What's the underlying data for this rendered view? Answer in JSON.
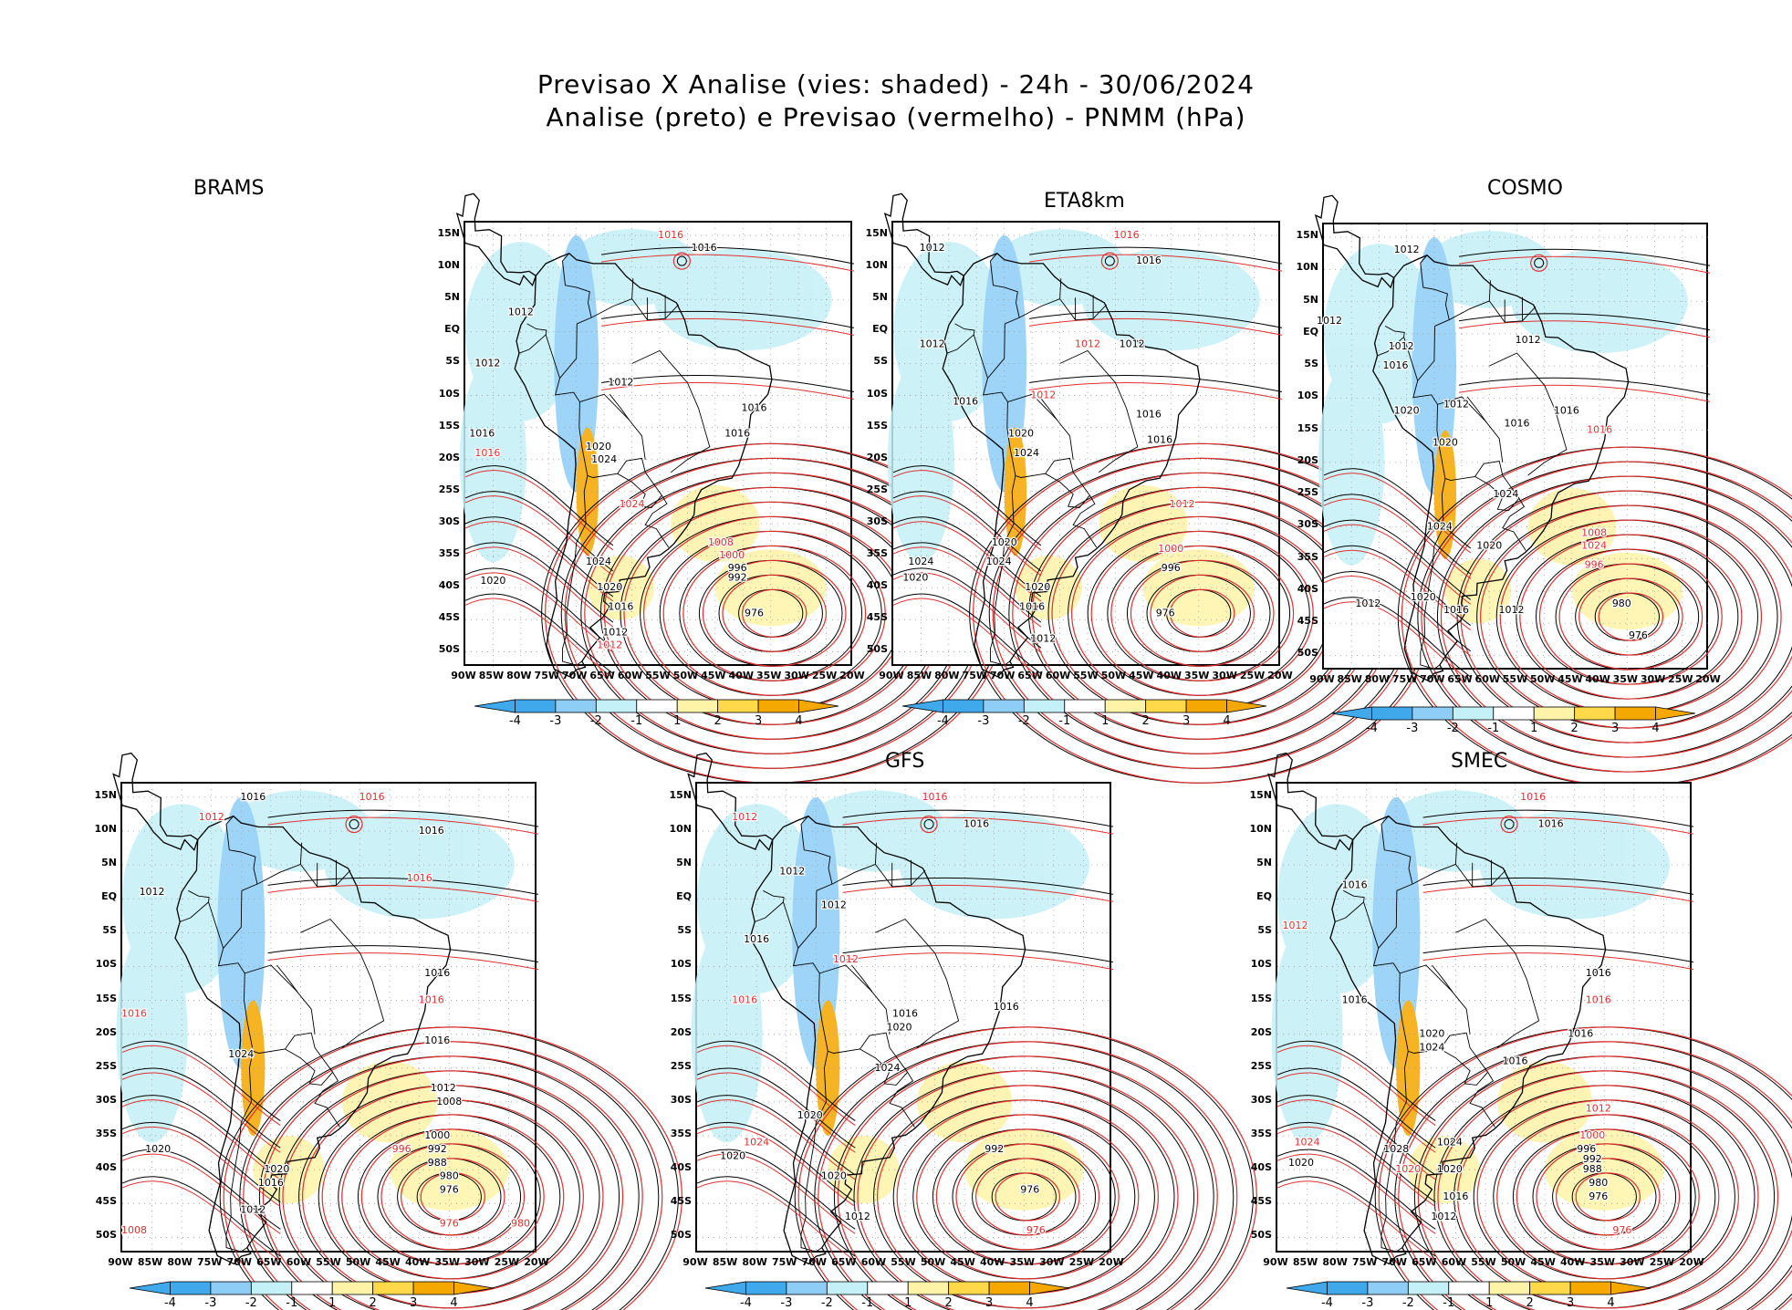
{
  "title": {
    "line1": "Previsao X Analise (vies: shaded) - 24h - 30/06/2024",
    "line2": "Analise (preto) e Previsao (vermelho) - PNMM (hPa)"
  },
  "colors": {
    "analysis_contour": "#000000",
    "forecast_contour": "#e03030",
    "bias": [
      "#3fa9ec",
      "#8ecdf6",
      "#c4f0f7",
      "#ffffff",
      "#fff3a8",
      "#ffd94a",
      "#f5a800"
    ]
  },
  "axes": {
    "lat_labels": [
      "15N",
      "10N",
      "5N",
      "EQ",
      "5S",
      "10S",
      "15S",
      "20S",
      "25S",
      "30S",
      "35S",
      "40S",
      "45S",
      "50S"
    ],
    "lon_labels": [
      "90W",
      "85W",
      "80W",
      "75W",
      "70W",
      "65W",
      "60W",
      "55W",
      "50W",
      "45W",
      "40W",
      "35W",
      "30W",
      "25W",
      "20W"
    ]
  },
  "colorbar": {
    "labels": [
      "-4",
      "-3",
      "-2",
      "-1",
      "1",
      "2",
      "3",
      "4"
    ]
  },
  "panels": [
    {
      "name": "BRAMS",
      "contour_labels": [
        {
          "text": "1016",
          "lon": -47,
          "lat": 13,
          "c": "a"
        },
        {
          "text": "1016",
          "lon": -53,
          "lat": 15,
          "c": "f"
        },
        {
          "text": "1012",
          "lon": -80,
          "lat": 3,
          "c": "a"
        },
        {
          "text": "1012",
          "lon": -86,
          "lat": -5,
          "c": "a"
        },
        {
          "text": "1012",
          "lon": -62,
          "lat": -8,
          "c": "a"
        },
        {
          "text": "1016",
          "lon": -87,
          "lat": -16,
          "c": "a"
        },
        {
          "text": "1016",
          "lon": -86,
          "lat": -19,
          "c": "f"
        },
        {
          "text": "1020",
          "lon": -66,
          "lat": -18,
          "c": "a"
        },
        {
          "text": "1024",
          "lon": -65,
          "lat": -20,
          "c": "a"
        },
        {
          "text": "1016",
          "lon": -38,
          "lat": -12,
          "c": "a"
        },
        {
          "text": "1016",
          "lon": -41,
          "lat": -16,
          "c": "a"
        },
        {
          "text": "1008",
          "lon": -44,
          "lat": -33,
          "c": "f"
        },
        {
          "text": "1000",
          "lon": -42,
          "lat": -35,
          "c": "f"
        },
        {
          "text": "996",
          "lon": -41,
          "lat": -37,
          "c": "a"
        },
        {
          "text": "992",
          "lon": -41,
          "lat": -38.5,
          "c": "a"
        },
        {
          "text": "976",
          "lon": -38,
          "lat": -44,
          "c": "a"
        },
        {
          "text": "1020",
          "lon": -85,
          "lat": -39,
          "c": "a"
        },
        {
          "text": "1024",
          "lon": -66,
          "lat": -36,
          "c": "a"
        },
        {
          "text": "1020",
          "lon": -64,
          "lat": -40,
          "c": "a"
        },
        {
          "text": "1016",
          "lon": -62,
          "lat": -43,
          "c": "a"
        },
        {
          "text": "1012",
          "lon": -63,
          "lat": -47,
          "c": "a"
        },
        {
          "text": "1012",
          "lon": -64,
          "lat": -49,
          "c": "f"
        },
        {
          "text": "1024",
          "lon": -60,
          "lat": -27,
          "c": "f"
        }
      ]
    },
    {
      "name": "ETA8km",
      "contour_labels": [
        {
          "text": "1012",
          "lon": -83,
          "lat": 13,
          "c": "a"
        },
        {
          "text": "1016",
          "lon": -48,
          "lat": 15,
          "c": "f"
        },
        {
          "text": "1016",
          "lon": -44,
          "lat": 11,
          "c": "a"
        },
        {
          "text": "1012",
          "lon": -83,
          "lat": -2,
          "c": "a"
        },
        {
          "text": "1012",
          "lon": -55,
          "lat": -2,
          "c": "f"
        },
        {
          "text": "1012",
          "lon": -47,
          "lat": -2,
          "c": "a"
        },
        {
          "text": "1016",
          "lon": -77,
          "lat": -11,
          "c": "a"
        },
        {
          "text": "1012",
          "lon": -63,
          "lat": -10,
          "c": "f"
        },
        {
          "text": "1020",
          "lon": -67,
          "lat": -16,
          "c": "a"
        },
        {
          "text": "1024",
          "lon": -66,
          "lat": -19,
          "c": "a"
        },
        {
          "text": "1016",
          "lon": -44,
          "lat": -13,
          "c": "a"
        },
        {
          "text": "1016",
          "lon": -42,
          "lat": -17,
          "c": "a"
        },
        {
          "text": "1012",
          "lon": -38,
          "lat": -27,
          "c": "f"
        },
        {
          "text": "1000",
          "lon": -40,
          "lat": -34,
          "c": "f"
        },
        {
          "text": "996",
          "lon": -40,
          "lat": -37,
          "c": "a"
        },
        {
          "text": "976",
          "lon": -41,
          "lat": -44,
          "c": "a"
        },
        {
          "text": "1024",
          "lon": -85,
          "lat": -36,
          "c": "a"
        },
        {
          "text": "1020",
          "lon": -86,
          "lat": -38.5,
          "c": "a"
        },
        {
          "text": "1020",
          "lon": -70,
          "lat": -33,
          "c": "a"
        },
        {
          "text": "1024",
          "lon": -71,
          "lat": -36,
          "c": "a"
        },
        {
          "text": "1020",
          "lon": -64,
          "lat": -40,
          "c": "a"
        },
        {
          "text": "1016",
          "lon": -65,
          "lat": -43,
          "c": "a"
        },
        {
          "text": "1012",
          "lon": -63,
          "lat": -48,
          "c": "a"
        }
      ]
    },
    {
      "name": "COSMO",
      "contour_labels": [
        {
          "text": "1012",
          "lon": -75,
          "lat": 13,
          "c": "a"
        },
        {
          "text": "1012",
          "lon": -89,
          "lat": 2,
          "c": "a"
        },
        {
          "text": "1012",
          "lon": -76,
          "lat": -2,
          "c": "a"
        },
        {
          "text": "1012",
          "lon": -53,
          "lat": -1,
          "c": "a"
        },
        {
          "text": "1016",
          "lon": -77,
          "lat": -5,
          "c": "a"
        },
        {
          "text": "1020",
          "lon": -75,
          "lat": -12,
          "c": "a"
        },
        {
          "text": "1012",
          "lon": -66,
          "lat": -11,
          "c": "a"
        },
        {
          "text": "1016",
          "lon": -55,
          "lat": -14,
          "c": "a"
        },
        {
          "text": "1020",
          "lon": -68,
          "lat": -17,
          "c": "a"
        },
        {
          "text": "1016",
          "lon": -46,
          "lat": -12,
          "c": "a"
        },
        {
          "text": "1016",
          "lon": -40,
          "lat": -15,
          "c": "f"
        },
        {
          "text": "1024",
          "lon": -57,
          "lat": -25,
          "c": "a"
        },
        {
          "text": "1008",
          "lon": -41,
          "lat": -31,
          "c": "f"
        },
        {
          "text": "1024",
          "lon": -41,
          "lat": -33,
          "c": "f"
        },
        {
          "text": "996",
          "lon": -41,
          "lat": -36,
          "c": "f"
        },
        {
          "text": "980",
          "lon": -36,
          "lat": -42,
          "c": "a"
        },
        {
          "text": "976",
          "lon": -33,
          "lat": -47,
          "c": "a"
        },
        {
          "text": "1020",
          "lon": -60,
          "lat": -33,
          "c": "a"
        },
        {
          "text": "1012",
          "lon": -82,
          "lat": -42,
          "c": "a"
        },
        {
          "text": "1016",
          "lon": -66,
          "lat": -43,
          "c": "a"
        },
        {
          "text": "1012",
          "lon": -56,
          "lat": -43,
          "c": "a"
        },
        {
          "text": "1024",
          "lon": -69,
          "lat": -30,
          "c": "a"
        },
        {
          "text": "1020",
          "lon": -72,
          "lat": -41,
          "c": "a"
        }
      ]
    },
    {
      "name": "",
      "contour_labels": [
        {
          "text": "1016",
          "lon": -68,
          "lat": 15,
          "c": "a"
        },
        {
          "text": "1016",
          "lon": -48,
          "lat": 15,
          "c": "f"
        },
        {
          "text": "1016",
          "lon": -38,
          "lat": 10,
          "c": "a"
        },
        {
          "text": "1012",
          "lon": -75,
          "lat": 12,
          "c": "f"
        },
        {
          "text": "1012",
          "lon": -85,
          "lat": 1,
          "c": "a"
        },
        {
          "text": "1016",
          "lon": -40,
          "lat": 3,
          "c": "f"
        },
        {
          "text": "1016",
          "lon": -37,
          "lat": -11,
          "c": "a"
        },
        {
          "text": "1016",
          "lon": -38,
          "lat": -15,
          "c": "f"
        },
        {
          "text": "1016",
          "lon": -37,
          "lat": -21,
          "c": "a"
        },
        {
          "text": "1012",
          "lon": -36,
          "lat": -28,
          "c": "a"
        },
        {
          "text": "1008",
          "lon": -35,
          "lat": -30,
          "c": "a"
        },
        {
          "text": "1000",
          "lon": -37,
          "lat": -35,
          "c": "a"
        },
        {
          "text": "992",
          "lon": -37,
          "lat": -37,
          "c": "a"
        },
        {
          "text": "988",
          "lon": -37,
          "lat": -39,
          "c": "a"
        },
        {
          "text": "980",
          "lon": -35,
          "lat": -41,
          "c": "a"
        },
        {
          "text": "976",
          "lon": -35,
          "lat": -43,
          "c": "a"
        },
        {
          "text": "976",
          "lon": -35,
          "lat": -48,
          "c": "f"
        },
        {
          "text": "980",
          "lon": -23,
          "lat": -48,
          "c": "f"
        },
        {
          "text": "1020",
          "lon": -84,
          "lat": -37,
          "c": "a"
        },
        {
          "text": "1024",
          "lon": -70,
          "lat": -23,
          "c": "a"
        },
        {
          "text": "1020",
          "lon": -64,
          "lat": -40,
          "c": "a"
        },
        {
          "text": "1016",
          "lon": -65,
          "lat": -42,
          "c": "a"
        },
        {
          "text": "1012",
          "lon": -68,
          "lat": -46,
          "c": "a"
        },
        {
          "text": "1016",
          "lon": -88,
          "lat": -17,
          "c": "f"
        },
        {
          "text": "996",
          "lon": -43,
          "lat": -37,
          "c": "f"
        },
        {
          "text": "1008",
          "lon": -88,
          "lat": -49,
          "c": "f"
        }
      ]
    },
    {
      "name": "GFS",
      "contour_labels": [
        {
          "text": "1016",
          "lon": -50,
          "lat": 15,
          "c": "f"
        },
        {
          "text": "1016",
          "lon": -43,
          "lat": 11,
          "c": "a"
        },
        {
          "text": "1012",
          "lon": -82,
          "lat": 12,
          "c": "f"
        },
        {
          "text": "1012",
          "lon": -74,
          "lat": 4,
          "c": "a"
        },
        {
          "text": "1012",
          "lon": -67,
          "lat": -1,
          "c": "a"
        },
        {
          "text": "1016",
          "lon": -80,
          "lat": -6,
          "c": "a"
        },
        {
          "text": "1012",
          "lon": -65,
          "lat": -9,
          "c": "f"
        },
        {
          "text": "1016",
          "lon": -55,
          "lat": -17,
          "c": "a"
        },
        {
          "text": "1016",
          "lon": -38,
          "lat": -16,
          "c": "a"
        },
        {
          "text": "1020",
          "lon": -56,
          "lat": -19,
          "c": "a"
        },
        {
          "text": "1024",
          "lon": -58,
          "lat": -25,
          "c": "a"
        },
        {
          "text": "992",
          "lon": -40,
          "lat": -37,
          "c": "a"
        },
        {
          "text": "976",
          "lon": -34,
          "lat": -43,
          "c": "a"
        },
        {
          "text": "976",
          "lon": -33,
          "lat": -49,
          "c": "f"
        },
        {
          "text": "1020",
          "lon": -84,
          "lat": -38,
          "c": "a"
        },
        {
          "text": "1024",
          "lon": -80,
          "lat": -36,
          "c": "f"
        },
        {
          "text": "1020",
          "lon": -71,
          "lat": -32,
          "c": "a"
        },
        {
          "text": "1020",
          "lon": -67,
          "lat": -41,
          "c": "a"
        },
        {
          "text": "1012",
          "lon": -63,
          "lat": -47,
          "c": "a"
        },
        {
          "text": "1016",
          "lon": -82,
          "lat": -15,
          "c": "f"
        }
      ]
    },
    {
      "name": "SMEC",
      "contour_labels": [
        {
          "text": "1016",
          "lon": -47,
          "lat": 15,
          "c": "f"
        },
        {
          "text": "1016",
          "lon": -44,
          "lat": 11,
          "c": "a"
        },
        {
          "text": "1016",
          "lon": -77,
          "lat": 2,
          "c": "a"
        },
        {
          "text": "1012",
          "lon": -87,
          "lat": -4,
          "c": "f"
        },
        {
          "text": "1016",
          "lon": -77,
          "lat": -15,
          "c": "a"
        },
        {
          "text": "1020",
          "lon": -64,
          "lat": -20,
          "c": "a"
        },
        {
          "text": "1024",
          "lon": -64,
          "lat": -22,
          "c": "a"
        },
        {
          "text": "1016",
          "lon": -36,
          "lat": -11,
          "c": "a"
        },
        {
          "text": "1016",
          "lon": -36,
          "lat": -15,
          "c": "f"
        },
        {
          "text": "1016",
          "lon": -39,
          "lat": -20,
          "c": "a"
        },
        {
          "text": "1016",
          "lon": -50,
          "lat": -24,
          "c": "a"
        },
        {
          "text": "1012",
          "lon": -36,
          "lat": -31,
          "c": "f"
        },
        {
          "text": "1000",
          "lon": -37,
          "lat": -35,
          "c": "f"
        },
        {
          "text": "996",
          "lon": -38,
          "lat": -37,
          "c": "a"
        },
        {
          "text": "992",
          "lon": -37,
          "lat": -38.5,
          "c": "a"
        },
        {
          "text": "988",
          "lon": -37,
          "lat": -40,
          "c": "a"
        },
        {
          "text": "980",
          "lon": -36,
          "lat": -42,
          "c": "a"
        },
        {
          "text": "976",
          "lon": -36,
          "lat": -44,
          "c": "a"
        },
        {
          "text": "976",
          "lon": -32,
          "lat": -49,
          "c": "f"
        },
        {
          "text": "1024",
          "lon": -85,
          "lat": -36,
          "c": "f"
        },
        {
          "text": "1020",
          "lon": -86,
          "lat": -39,
          "c": "a"
        },
        {
          "text": "1024",
          "lon": -61,
          "lat": -36,
          "c": "a"
        },
        {
          "text": "1020",
          "lon": -61,
          "lat": -40,
          "c": "a"
        },
        {
          "text": "1016",
          "lon": -60,
          "lat": -44,
          "c": "a"
        },
        {
          "text": "1012",
          "lon": -62,
          "lat": -47,
          "c": "a"
        },
        {
          "text": "1028",
          "lon": -70,
          "lat": -37,
          "c": "a"
        },
        {
          "text": "1020",
          "lon": -68,
          "lat": -40,
          "c": "f"
        }
      ]
    }
  ]
}
